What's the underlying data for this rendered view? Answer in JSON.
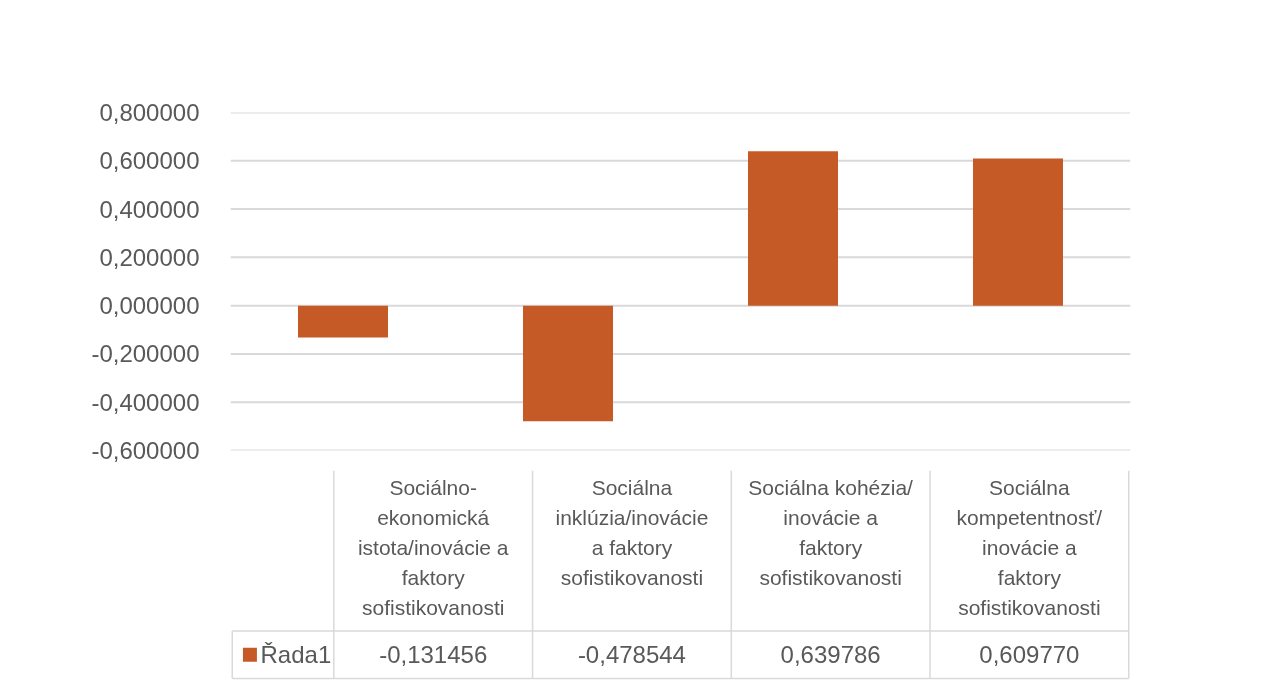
{
  "chart_data": {
    "type": "bar",
    "categories": [
      "Sociálno-ekonomická istota/inovácie a faktory sofistikovanosti",
      "Sociálna inklúzia/inovácie a faktory sofistikovanosti",
      "Sociálna kohézia/inovácie a faktory sofistikovanosti",
      "Sociálna kompetentnosť/inovácie a faktory sofistikovanosti"
    ],
    "series": [
      {
        "name": "Řada1",
        "color": "#c55a27",
        "values": [
          -0.131456,
          -0.478544,
          0.639786,
          0.60977
        ],
        "value_labels": [
          "-0,131456",
          "-0,478544",
          "0,639786",
          "0,609770"
        ]
      }
    ],
    "ylim": [
      -0.6,
      0.8
    ],
    "yticks": [
      {
        "value": -0.6,
        "label": "-0,600000"
      },
      {
        "value": -0.4,
        "label": "-0,400000"
      },
      {
        "value": -0.2,
        "label": "-0,200000"
      },
      {
        "value": 0,
        "label": "0,000000"
      },
      {
        "value": 0.2,
        "label": "0,200000"
      },
      {
        "value": 0.4,
        "label": "0,400000"
      },
      {
        "value": 0.6,
        "label": "0,600000"
      },
      {
        "value": 0.8,
        "label": "0,800000"
      }
    ],
    "grid": "y",
    "legend": "bottom left"
  }
}
